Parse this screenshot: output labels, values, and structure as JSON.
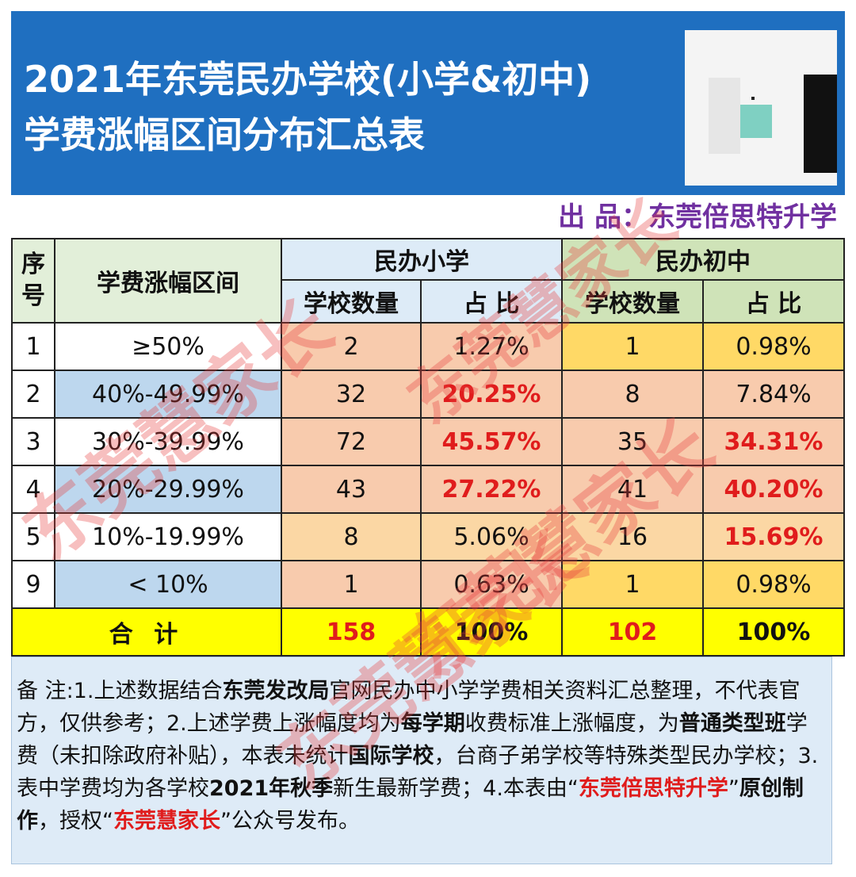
{
  "title_line1": "2021年东莞民办学校(小学&初中)",
  "title_line2": "学费涨幅区间分布汇总表",
  "producer": "出 品：东莞倍思特升学",
  "table": {
    "col_seq": "序号",
    "col_range": "学费涨幅区间",
    "group_primary": "民办小学",
    "group_junior": "民办初中",
    "sub_count": "学校数量",
    "sub_ratio": "占 比",
    "rows": [
      {
        "seq": "1",
        "range": "≥50%",
        "p_count": "2",
        "p_ratio": "1.27%",
        "j_count": "1",
        "j_ratio": "0.98%"
      },
      {
        "seq": "2",
        "range": "40%-49.99%",
        "p_count": "32",
        "p_ratio": "20.25%",
        "j_count": "8",
        "j_ratio": "7.84%"
      },
      {
        "seq": "3",
        "range": "30%-39.99%",
        "p_count": "72",
        "p_ratio": "45.57%",
        "j_count": "35",
        "j_ratio": "34.31%"
      },
      {
        "seq": "4",
        "range": "20%-29.99%",
        "p_count": "43",
        "p_ratio": "27.22%",
        "j_count": "41",
        "j_ratio": "40.20%"
      },
      {
        "seq": "5",
        "range": "10%-19.99%",
        "p_count": "8",
        "p_ratio": "5.06%",
        "j_count": "16",
        "j_ratio": "15.69%"
      },
      {
        "seq": "9",
        "range": "< 10%",
        "p_count": "1",
        "p_ratio": "0.63%",
        "j_count": "1",
        "j_ratio": "0.98%"
      }
    ],
    "total_label": "合 计",
    "total_p_count": "158",
    "total_p_ratio": "100%",
    "total_j_count": "102",
    "total_j_ratio": "100%"
  },
  "note": {
    "s1": "备 注:1.上述数据结合",
    "s2": "东莞发改局",
    "s3": "官网民办中小学学费相关资料汇总整理，不代表官方，仅供参考；2.上述学费上涨幅度均为",
    "s4": "每学期",
    "s5": "收费标准上涨幅度，为",
    "s6": "普通类型班",
    "s7": "学费（未扣除政府补贴），本表未统计",
    "s8": "国际学校",
    "s9": "，台商子弟学校等特殊类型民办学校；3.表中学费均为各学校",
    "s10": "2021年秋季",
    "s11": "新生最新学费；4.本表由“",
    "s12": "东莞倍思特升学",
    "s13": "”",
    "s14": "原创制作",
    "s15": "，授权“",
    "s16": "东莞慧家长",
    "s17": "”公众号发布。"
  },
  "watermark": "东莞慧家长",
  "colors": {
    "banner": "#1f6fc0",
    "producer": "#7030a0",
    "highlight_red": "#e01c1c",
    "total_row": "#ffff00"
  }
}
